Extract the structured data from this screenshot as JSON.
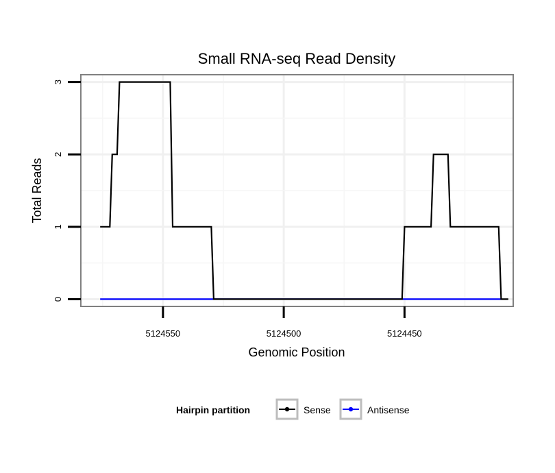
{
  "chart_data": {
    "type": "line",
    "title": "Small RNA-seq Read Density",
    "xlabel": "Genomic Position",
    "ylabel": "Total Reads",
    "x_reversed": true,
    "xlim": [
      5124584,
      5124405
    ],
    "ylim": [
      -0.1,
      3.1
    ],
    "x_ticks": [
      5124550,
      5124500,
      5124450
    ],
    "x_tick_labels": [
      "5124550",
      "5124500",
      "5124450"
    ],
    "y_ticks": [
      0,
      1,
      2,
      3
    ],
    "y_tick_labels": [
      "0",
      "1",
      "2",
      "3"
    ],
    "grid": true,
    "legend": {
      "title": "Hairpin partition",
      "position": "bottom"
    },
    "series": [
      {
        "name": "Sense",
        "color": "#000000",
        "x": [
          5124576,
          5124572,
          5124571,
          5124569,
          5124568,
          5124547,
          5124546,
          5124530,
          5124529,
          5124451,
          5124450,
          5124439,
          5124438,
          5124432,
          5124431,
          5124411,
          5124410,
          5124407
        ],
        "y": [
          1,
          1,
          2,
          2,
          3,
          3,
          1,
          1,
          0,
          0,
          1,
          1,
          2,
          2,
          1,
          1,
          0,
          0
        ]
      },
      {
        "name": "Antisense",
        "color": "#0000ff",
        "x": [
          5124576,
          5124410
        ],
        "y": [
          0,
          0
        ]
      }
    ]
  }
}
